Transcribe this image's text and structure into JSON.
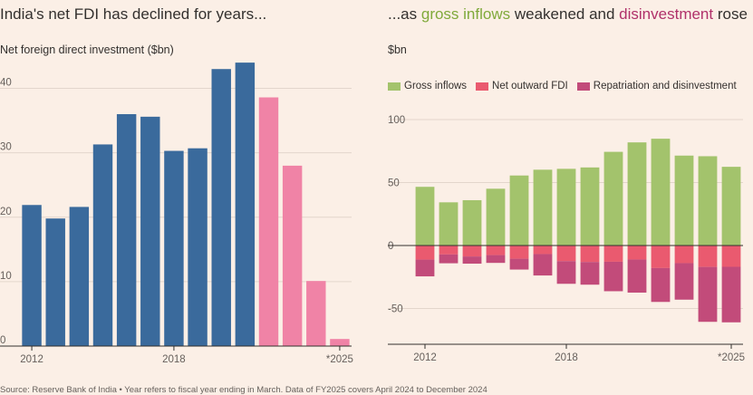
{
  "left": {
    "title": "India's net FDI has declined for years...",
    "subtitle": "Net foreign direct investment ($bn)"
  },
  "right": {
    "title_pre": "...as ",
    "title_green": "gross inflows",
    "title_mid": " weakened and ",
    "title_pink": "disinvestment",
    "title_post": " rose",
    "subtitle": "$bn",
    "legend": [
      "Gross inflows",
      "Net outward FDI",
      "Repatriation and disinvestment"
    ]
  },
  "colors": {
    "blue": "#3a6a9c",
    "pink_light": "#f083a6",
    "green": "#a3c36c",
    "red": "#ea5a6f",
    "maroon": "#c24b7a",
    "grid": "#e3d6cc",
    "axis": "#33302e"
  },
  "chart_data": [
    {
      "type": "bar",
      "title": "India's net FDI has declined for years...",
      "ylabel": "Net foreign direct investment ($bn)",
      "x": [
        2012,
        2013,
        2014,
        2015,
        2016,
        2017,
        2018,
        2019,
        2020,
        2021,
        2022,
        2023,
        2024,
        2025
      ],
      "xtick_labels": [
        "2012",
        "2018",
        "*2025"
      ],
      "xtick_positions": [
        2012,
        2018,
        2025
      ],
      "values": [
        21.9,
        19.8,
        21.6,
        31.3,
        36.0,
        35.6,
        30.3,
        30.7,
        43.0,
        44.0,
        38.6,
        28.0,
        10.1,
        1.1
      ],
      "highlight_from": 2022,
      "ylim": [
        0,
        45
      ],
      "yticks": [
        0,
        10,
        20,
        30,
        40
      ],
      "grid": true
    },
    {
      "type": "bar",
      "title": "...as gross inflows weakened and disinvestment rose",
      "ylabel": "$bn",
      "x": [
        2012,
        2013,
        2014,
        2015,
        2016,
        2017,
        2018,
        2019,
        2020,
        2021,
        2022,
        2023,
        2024,
        2025
      ],
      "xtick_labels": [
        "2012",
        "2018",
        "*2025"
      ],
      "xtick_positions": [
        2012,
        2018,
        2025
      ],
      "series": [
        {
          "name": "Gross inflows",
          "values": [
            46.6,
            34.3,
            36.0,
            45.1,
            55.6,
            60.2,
            60.9,
            62.0,
            74.4,
            81.9,
            84.8,
            71.4,
            70.9,
            62.5
          ]
        },
        {
          "name": "Net outward FDI",
          "values": [
            -11.2,
            -7.1,
            -8.7,
            -7.6,
            -10.5,
            -6.8,
            -12.4,
            -13.1,
            -12.9,
            -11.1,
            -17.9,
            -14.0,
            -17.0,
            -16.9
          ]
        },
        {
          "name": "Repatriation and disinvestment",
          "values": [
            -13.3,
            -7.0,
            -5.7,
            -6.2,
            -8.6,
            -17.0,
            -18.0,
            -18.0,
            -23.4,
            -26.3,
            -26.9,
            -29.0,
            -43.6,
            -44.1
          ]
        }
      ],
      "ylim": [
        -80,
        110
      ],
      "yticks": [
        -50,
        0,
        50,
        100
      ],
      "grid": true,
      "legend": "top-left",
      "stacked": true
    }
  ],
  "footer": "Source: Reserve Bank of India • Year refers to fiscal year ending in March. Data of FY2025 covers April 2024 to December 2024"
}
